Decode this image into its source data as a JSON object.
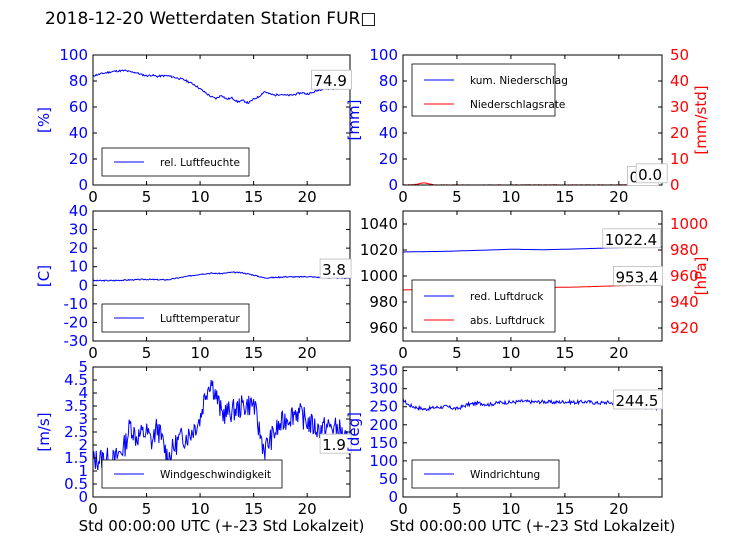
{
  "title": "2018-12-20 Wetterdaten Station FUR□",
  "colors": {
    "primary": "#0000ff",
    "secondary": "#ff0000",
    "axis": "#000000",
    "legend_text": "#000000"
  },
  "chart_data": [
    {
      "id": "humidity",
      "type": "line",
      "xlim": [
        0,
        24
      ],
      "xticks": [
        0,
        5,
        10,
        15,
        20
      ],
      "ylabel": "[%]",
      "ylim": [
        0,
        100
      ],
      "yticks": [
        0,
        20,
        40,
        60,
        80,
        100
      ],
      "annotation": "74.9",
      "annotation_pos": [
        20.5,
        76
      ],
      "legend": {
        "position": "lower-left"
      },
      "series": [
        {
          "name": "rel. Luftfeuchte",
          "color": "#0000ff",
          "axis": "left",
          "noise": 0.7,
          "seed": 11,
          "x": [
            0,
            0.5,
            1,
            2,
            3,
            3.5,
            4,
            4.5,
            5,
            5.5,
            6,
            6.5,
            7,
            7.5,
            8,
            8.5,
            9,
            9.5,
            10,
            10.5,
            11,
            11.5,
            12,
            12.5,
            13,
            13.5,
            14,
            14.5,
            15,
            15.5,
            16,
            16.5,
            17,
            17.5,
            18,
            18.5,
            19,
            19.5,
            20,
            20.5,
            21,
            21.5,
            22,
            22.5,
            23,
            23.5,
            24
          ],
          "y": [
            84,
            85,
            86,
            87.5,
            88,
            87,
            86.5,
            85,
            84,
            84.5,
            83.5,
            84,
            84,
            83,
            82,
            81,
            79,
            77,
            74,
            71,
            68,
            66.5,
            69,
            66,
            67,
            64,
            65,
            63,
            66,
            68,
            72,
            70,
            69,
            70,
            69,
            69,
            70,
            71,
            70,
            71,
            73,
            74,
            74,
            74,
            74.5,
            74.5,
            74.9
          ]
        }
      ]
    },
    {
      "id": "precipitation",
      "type": "line",
      "xlim": [
        0,
        24
      ],
      "xticks": [
        0,
        5,
        10,
        15,
        20
      ],
      "ylabel": "[mm]",
      "ylim": [
        0,
        100
      ],
      "yticks": [
        0,
        20,
        40,
        60,
        80,
        100
      ],
      "ylabel2": "[mm/std]",
      "ylim2": [
        0,
        50
      ],
      "yticks2": [
        0,
        10,
        20,
        30,
        40,
        50
      ],
      "annotation": "0.0",
      "annotation_pos": [
        20.9,
        2
      ],
      "annotation2": "0.0",
      "annotation2_pos": [
        21.7,
        2
      ],
      "legend": {
        "position": "upper-left"
      },
      "series": [
        {
          "name": "kum. Niederschlag",
          "color": "#0000ff",
          "axis": "left",
          "noise": 0,
          "seed": 1,
          "x": [
            0,
            24
          ],
          "y": [
            0,
            0
          ]
        },
        {
          "name": "Niederschlagsrate",
          "color": "#ff0000",
          "axis": "right",
          "noise": 0.12,
          "seed": 5,
          "x": [
            0,
            1,
            1.5,
            2,
            2.5,
            3,
            24
          ],
          "y": [
            0,
            0.1,
            0.5,
            0.8,
            0.3,
            0,
            0
          ]
        }
      ]
    },
    {
      "id": "temperature",
      "type": "line",
      "xlim": [
        0,
        24
      ],
      "xticks": [
        0,
        5,
        10,
        15,
        20
      ],
      "ylabel": "[C]",
      "ylim": [
        -30,
        40
      ],
      "yticks": [
        -30,
        -20,
        -10,
        0,
        10,
        20,
        30,
        40
      ],
      "annotation": "3.8",
      "annotation_pos": [
        21.3,
        5.5
      ],
      "legend": {
        "position": "lower-left"
      },
      "series": [
        {
          "name": "Lufttemperatur",
          "color": "#0000ff",
          "axis": "left",
          "noise": 0.3,
          "seed": 3,
          "x": [
            0,
            1,
            2,
            3,
            4,
            5,
            6,
            7,
            8,
            9,
            10,
            11,
            12,
            13,
            14,
            15,
            16,
            17,
            18,
            19,
            20,
            21,
            22,
            23,
            24
          ],
          "y": [
            2.5,
            2.5,
            2.6,
            2.8,
            3.0,
            3.2,
            3.0,
            3.0,
            4.0,
            5.0,
            6.0,
            6.5,
            6.3,
            7.0,
            6.7,
            5.5,
            4.0,
            4.2,
            4.6,
            4.5,
            4.7,
            4.3,
            4.0,
            3.9,
            3.8
          ]
        }
      ]
    },
    {
      "id": "pressure",
      "type": "line",
      "xlim": [
        0,
        24
      ],
      "xticks": [
        0,
        5,
        10,
        15,
        20
      ],
      "ylim": [
        950,
        1050
      ],
      "yticks": [
        960,
        980,
        1000,
        1020,
        1040
      ],
      "ylabel2": "[hPa]",
      "ylim2": [
        910,
        1010
      ],
      "yticks2": [
        920,
        940,
        960,
        980,
        1000
      ],
      "annotation": "1022.4",
      "annotation_pos": [
        18.6,
        1024
      ],
      "annotation2": "953.4",
      "annotation2_pos": [
        19.6,
        955
      ],
      "legend": {
        "position": "lower-left"
      },
      "series": [
        {
          "name": "red. Luftdruck",
          "color": "#0000ff",
          "axis": "left",
          "noise": 0.05,
          "seed": 7,
          "x": [
            0,
            4,
            8,
            10,
            13,
            16,
            20,
            24
          ],
          "y": [
            1018.5,
            1019.0,
            1020.0,
            1020.6,
            1020.2,
            1020.8,
            1021.8,
            1022.4
          ]
        },
        {
          "name": "abs. Luftdruck",
          "color": "#ff0000",
          "axis": "right",
          "noise": 0.05,
          "seed": 9,
          "x": [
            0,
            4,
            8,
            12,
            16,
            20,
            24
          ],
          "y": [
            949.3,
            949.7,
            950.5,
            951.0,
            951.5,
            952.5,
            953.4
          ]
        }
      ]
    },
    {
      "id": "windspeed",
      "type": "line",
      "xlim": [
        0,
        24
      ],
      "xticks": [
        0,
        5,
        10,
        15,
        20
      ],
      "xlabel": "Std 00:00:00 UTC (+-23 Std Lokalzeit)",
      "ylabel": "[m/s]",
      "ylim": [
        0,
        5
      ],
      "yticks": [
        0,
        0.5,
        1,
        1.5,
        2,
        2.5,
        3,
        3.5,
        4,
        4.5,
        5
      ],
      "annotation": "1.9",
      "annotation_pos": [
        21.3,
        1.8
      ],
      "legend": {
        "position": "lower-left"
      },
      "series": [
        {
          "name": "Windgeschwindigkeit",
          "color": "#0000ff",
          "axis": "left",
          "noise": 0.45,
          "seed": 13,
          "x": [
            0,
            1,
            2,
            3,
            3.5,
            4,
            5,
            5.5,
            6,
            7,
            8,
            9,
            10,
            10.5,
            11,
            11.5,
            12,
            13,
            14,
            15,
            15.5,
            16,
            17,
            18,
            19,
            20,
            21,
            22,
            23,
            24
          ],
          "y": [
            1.4,
            1.5,
            1.4,
            2.0,
            2.8,
            2.3,
            2.5,
            2.1,
            2.7,
            1.5,
            2.2,
            2.4,
            3.0,
            4.0,
            4.5,
            3.9,
            3.2,
            3.3,
            3.5,
            3.6,
            2.6,
            1.8,
            2.5,
            3.0,
            3.3,
            2.9,
            2.6,
            2.7,
            2.6,
            1.9
          ]
        }
      ]
    },
    {
      "id": "winddirection",
      "type": "line",
      "xlim": [
        0,
        24
      ],
      "xticks": [
        0,
        5,
        10,
        15,
        20
      ],
      "xlabel": "Std 00:00:00 UTC (+-23 Std Lokalzeit)",
      "ylabel": "[deg]",
      "ylim": [
        0,
        360
      ],
      "yticks": [
        0,
        50,
        100,
        150,
        200,
        250,
        300,
        350
      ],
      "annotation": "244.5",
      "annotation_pos": [
        19.6,
        252
      ],
      "legend": {
        "position": "lower-left"
      },
      "series": [
        {
          "name": "Windrichtung",
          "color": "#0000ff",
          "axis": "left",
          "noise": 5,
          "seed": 17,
          "x": [
            0,
            0.5,
            1,
            2,
            3,
            4,
            5,
            6,
            7,
            8,
            9,
            10,
            11,
            12,
            13,
            14,
            15,
            16,
            17,
            18,
            19,
            20,
            21,
            22,
            23,
            24
          ],
          "y": [
            270,
            255,
            250,
            243,
            248,
            250,
            244,
            256,
            260,
            256,
            262,
            262,
            265,
            263,
            264,
            262,
            264,
            262,
            264,
            260,
            262,
            258,
            252,
            250,
            248,
            244.5
          ]
        }
      ]
    }
  ]
}
